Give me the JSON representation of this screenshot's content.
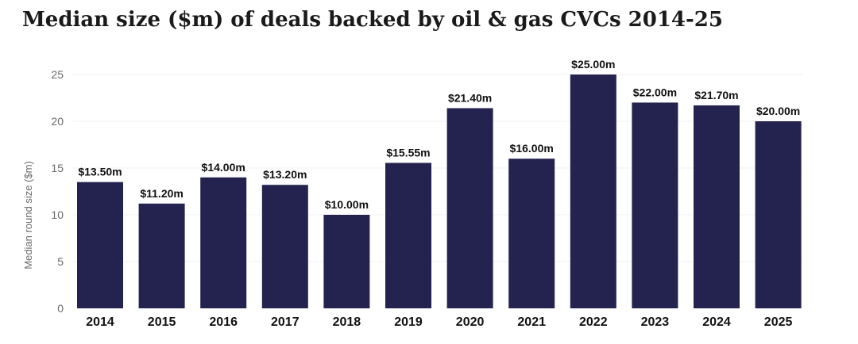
{
  "chart_data": {
    "type": "bar",
    "title": "Median size ($m) of deals backed by oil & gas CVCs 2014-25",
    "xlabel": "",
    "ylabel": "Median round size ($m)",
    "ylim": [
      0,
      25
    ],
    "yticks": [
      0,
      5,
      10,
      15,
      20,
      25
    ],
    "grid": true,
    "legend": "none",
    "bar_color": "#24234f",
    "categories": [
      "2014",
      "2015",
      "2016",
      "2017",
      "2018",
      "2019",
      "2020",
      "2021",
      "2022",
      "2023",
      "2024",
      "2025"
    ],
    "values": [
      13.5,
      11.2,
      14.0,
      13.2,
      10.0,
      15.55,
      21.4,
      16.0,
      25.0,
      22.0,
      21.7,
      20.0
    ],
    "data_labels": [
      "$13.50m",
      "$11.20m",
      "$14.00m",
      "$13.20m",
      "$10.00m",
      "$15.55m",
      "$21.40m",
      "$16.00m",
      "$25.00m",
      "$22.00m",
      "$21.70m",
      "$20.00m"
    ]
  }
}
